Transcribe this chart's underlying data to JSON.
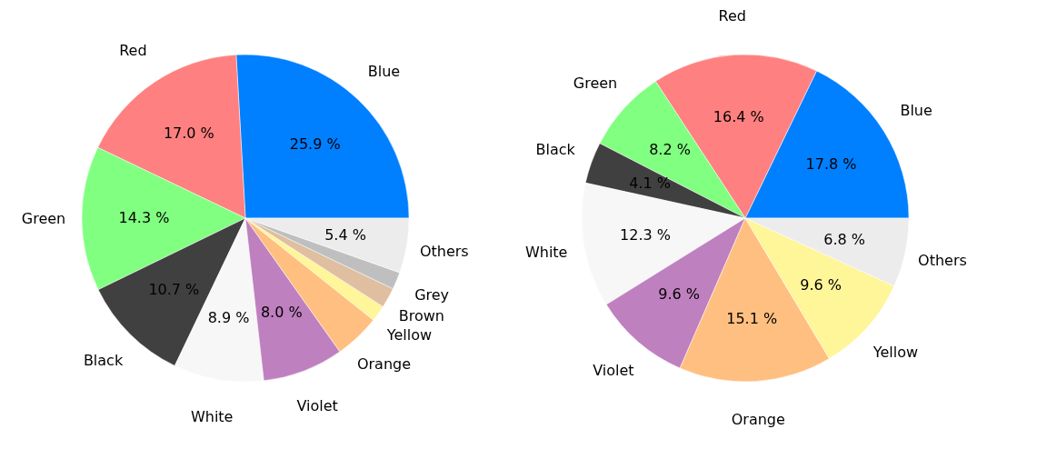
{
  "chart_data": [
    {
      "type": "pie",
      "categories": [
        "Blue",
        "Red",
        "Green",
        "Black",
        "White",
        "Violet",
        "Orange",
        "Yellow",
        "Brown",
        "Grey",
        "Others"
      ],
      "values": [
        25.9,
        17.0,
        14.3,
        10.7,
        8.9,
        8.0,
        4.5,
        1.6,
        2.0,
        1.7,
        5.4
      ],
      "value_labels": [
        "25.9 %",
        "17.0 %",
        "14.3 %",
        "10.7 %",
        "8.9 %",
        "8.0 %",
        null,
        null,
        null,
        null,
        "5.4 %"
      ],
      "colors": [
        "#007fff",
        "#ff8080",
        "#80ff80",
        "#404040",
        "#f7f7f7",
        "#bf80bf",
        "#ffbf80",
        "#fff599",
        "#dfbf9f",
        "#bfbfbf",
        "#ececec"
      ]
    },
    {
      "type": "pie",
      "categories": [
        "Blue",
        "Red",
        "Green",
        "Black",
        "White",
        "Violet",
        "Orange",
        "Yellow",
        "Others"
      ],
      "values": [
        17.8,
        16.4,
        8.2,
        4.1,
        12.3,
        9.6,
        15.1,
        9.6,
        6.8
      ],
      "value_labels": [
        "17.8 %",
        "16.4 %",
        "8.2 %",
        "4.1 %",
        "12.3 %",
        "9.6 %",
        "15.1 %",
        "9.6 %",
        "6.8 %"
      ],
      "colors": [
        "#007fff",
        "#ff8080",
        "#80ff80",
        "#404040",
        "#f7f7f7",
        "#bf80bf",
        "#ffbf80",
        "#fff599",
        "#ececec"
      ]
    }
  ]
}
